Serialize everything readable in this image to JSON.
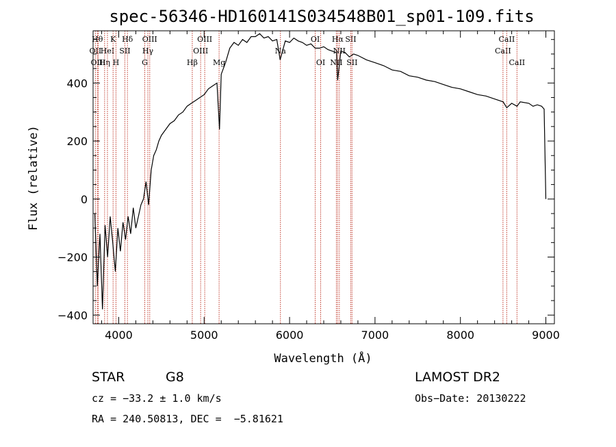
{
  "chart_data": {
    "type": "line",
    "title": "spec-56346-HD160141S034548B01_sp01-109.fits",
    "xlabel": "Wavelength (Å)",
    "ylabel": "Flux (relative)",
    "xlim": [
      3700,
      9100
    ],
    "ylim": [
      -430,
      580
    ],
    "x_ticks": [
      4000,
      5000,
      6000,
      7000,
      8000,
      9000
    ],
    "y_ticks": [
      -400,
      -200,
      0,
      200,
      400
    ],
    "grid": false,
    "line_color": "#000000",
    "marker_color": "#c0392b",
    "series": [
      {
        "x": [
          3720,
          3750,
          3780,
          3810,
          3840,
          3870,
          3900,
          3930,
          3960,
          3990,
          4020,
          4050,
          4080,
          4110,
          4140,
          4170,
          4200,
          4230,
          4260,
          4290,
          4320,
          4350,
          4380,
          4410,
          4440,
          4470,
          4500,
          4550,
          4600,
          4650,
          4700,
          4750,
          4800,
          4850,
          4900,
          4950,
          5000,
          5050,
          5100,
          5150,
          5180,
          5200,
          5250,
          5300,
          5350,
          5400,
          5450,
          5500,
          5550,
          5600,
          5650,
          5700,
          5750,
          5800,
          5850,
          5890,
          5950,
          6000,
          6050,
          6100,
          6150,
          6200,
          6250,
          6300,
          6350,
          6400,
          6450,
          6500,
          6550,
          6563,
          6600,
          6650,
          6700,
          6750,
          6800,
          6900,
          7000,
          7100,
          7200,
          7300,
          7400,
          7500,
          7600,
          7700,
          7800,
          7900,
          8000,
          8100,
          8200,
          8300,
          8400,
          8500,
          8542,
          8600,
          8662,
          8700,
          8800,
          8850,
          8900,
          8950,
          8980,
          9000
        ],
        "y": [
          -50,
          -300,
          -120,
          -380,
          -90,
          -200,
          -60,
          -150,
          -250,
          -100,
          -180,
          -80,
          -140,
          -60,
          -120,
          -30,
          -100,
          -60,
          -20,
          0,
          60,
          -20,
          100,
          150,
          170,
          200,
          220,
          240,
          260,
          270,
          290,
          300,
          320,
          330,
          340,
          350,
          360,
          380,
          390,
          400,
          240,
          430,
          470,
          520,
          540,
          530,
          550,
          540,
          560,
          560,
          570,
          555,
          560,
          545,
          550,
          480,
          545,
          540,
          555,
          545,
          540,
          530,
          535,
          520,
          520,
          525,
          515,
          510,
          505,
          410,
          510,
          505,
          490,
          500,
          495,
          480,
          470,
          460,
          445,
          440,
          425,
          420,
          410,
          405,
          395,
          385,
          380,
          370,
          360,
          355,
          345,
          335,
          315,
          330,
          320,
          335,
          330,
          320,
          325,
          320,
          310,
          0
        ]
      }
    ],
    "line_markers": [
      {
        "x": 3727,
        "label": "OII",
        "row": 2
      },
      {
        "x": 3750,
        "label": "Hθ",
        "row": 1
      },
      {
        "x": 3760,
        "label": "OIII",
        "row": 3
      },
      {
        "x": 3835,
        "label": "Hη",
        "row": 3
      },
      {
        "x": 3868,
        "label": "HeI",
        "row": 2
      },
      {
        "x": 3934,
        "label": "K",
        "row": 1
      },
      {
        "x": 3968,
        "label": "H",
        "row": 3
      },
      {
        "x": 4072,
        "label": "SII",
        "row": 2
      },
      {
        "x": 4102,
        "label": "Hδ",
        "row": 1
      },
      {
        "x": 4305,
        "label": "G",
        "row": 3
      },
      {
        "x": 4341,
        "label": "Hγ",
        "row": 2
      },
      {
        "x": 4363,
        "label": "OIII",
        "row": 1
      },
      {
        "x": 4861,
        "label": "Hβ",
        "row": 3
      },
      {
        "x": 4959,
        "label": "OIII",
        "row": 2
      },
      {
        "x": 5007,
        "label": "OIII",
        "row": 1
      },
      {
        "x": 5175,
        "label": "Mg",
        "row": 3
      },
      {
        "x": 5893,
        "label": "Na",
        "row": 2
      },
      {
        "x": 6300,
        "label": "OI",
        "row": 1
      },
      {
        "x": 6364,
        "label": "OI",
        "row": 3
      },
      {
        "x": 6548,
        "label": "NII",
        "row": 3
      },
      {
        "x": 6563,
        "label": "Hα",
        "row": 1
      },
      {
        "x": 6583,
        "label": "NII",
        "row": 2
      },
      {
        "x": 6716,
        "label": "SII",
        "row": 1
      },
      {
        "x": 6731,
        "label": "SII",
        "row": 3
      },
      {
        "x": 8498,
        "label": "CaII",
        "row": 2
      },
      {
        "x": 8542,
        "label": "CaII",
        "row": 1
      },
      {
        "x": 8662,
        "label": "CaII",
        "row": 3
      }
    ]
  },
  "info": {
    "object_class": "STAR",
    "subclass": "G8",
    "survey": "LAMOST DR2",
    "redshift": "cz = −33.2 ± 1.0 km/s",
    "obs_date": "Obs−Date: 20130222",
    "coords": "RA = 240.50813, DEC =  −5.81621"
  }
}
